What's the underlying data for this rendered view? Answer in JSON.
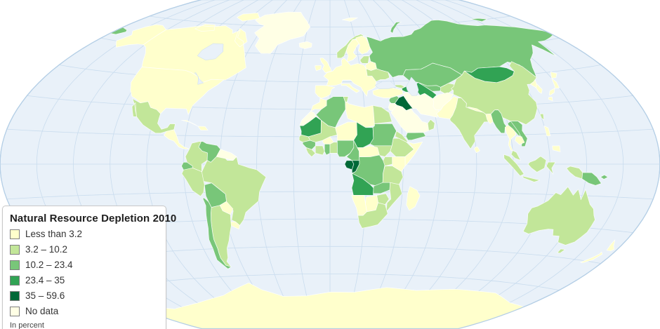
{
  "legend": {
    "title": "Natural Resource Depletion 2010",
    "note": "In percent",
    "items": [
      {
        "label": "Less than 3.2",
        "color": "#FFFFCC"
      },
      {
        "label": "3.2 – 10.2",
        "color": "#C2E699"
      },
      {
        "label": "10.2 – 23.4",
        "color": "#78C679"
      },
      {
        "label": "23.4 – 35",
        "color": "#31A354"
      },
      {
        "label": "35 – 59.6",
        "color": "#006837"
      },
      {
        "label": "No data",
        "color": "#FFFFE5"
      }
    ]
  },
  "map": {
    "projection": "winkel-tripel",
    "ocean_color": "#E9F1F9",
    "graticule_color": "#C9DCEE",
    "outline_color": "#B5CFE6",
    "border_color": "#FFFFFF",
    "background_color": "#FFFFFF",
    "regions": [
      {
        "name": "russia",
        "cat": 2
      },
      {
        "name": "chukotka",
        "cat": 2
      },
      {
        "name": "novaya-zemlya",
        "cat": 2
      },
      {
        "name": "new-siberian",
        "cat": 2
      },
      {
        "name": "svalbard",
        "cat": 5
      },
      {
        "name": "canada",
        "cat": 0
      },
      {
        "name": "usa",
        "cat": 0
      },
      {
        "name": "greenland",
        "cat": 5
      },
      {
        "name": "iceland",
        "cat": 5
      },
      {
        "name": "mexico",
        "cat": 1
      },
      {
        "name": "central-america",
        "cat": 0
      },
      {
        "name": "cuba",
        "cat": 0
      },
      {
        "name": "hispaniola",
        "cat": 0
      },
      {
        "name": "brazil",
        "cat": 1
      },
      {
        "name": "colombia",
        "cat": 1
      },
      {
        "name": "venezuela",
        "cat": 2
      },
      {
        "name": "guyanas",
        "cat": 5
      },
      {
        "name": "ecuador",
        "cat": 2
      },
      {
        "name": "peru",
        "cat": 1
      },
      {
        "name": "bolivia",
        "cat": 2
      },
      {
        "name": "paraguay",
        "cat": 0
      },
      {
        "name": "uruguay",
        "cat": 0
      },
      {
        "name": "argentina",
        "cat": 1
      },
      {
        "name": "chile",
        "cat": 2
      },
      {
        "name": "europe",
        "cat": 0
      },
      {
        "name": "iberia",
        "cat": 0
      },
      {
        "name": "uk",
        "cat": 0
      },
      {
        "name": "ireland",
        "cat": 0
      },
      {
        "name": "italy",
        "cat": 0
      },
      {
        "name": "norway",
        "cat": 1
      },
      {
        "name": "sweden",
        "cat": 0
      },
      {
        "name": "finland",
        "cat": 0
      },
      {
        "name": "baltics",
        "cat": 1
      },
      {
        "name": "belarus",
        "cat": 0
      },
      {
        "name": "ukraine",
        "cat": 1
      },
      {
        "name": "turkey",
        "cat": 0
      },
      {
        "name": "georgia",
        "cat": 1
      },
      {
        "name": "azerbaijan",
        "cat": 3
      },
      {
        "name": "kazakhstan",
        "cat": 2
      },
      {
        "name": "uzbekistan",
        "cat": 2
      },
      {
        "name": "turkmenistan",
        "cat": 3
      },
      {
        "name": "kyrgyzstan",
        "cat": 1
      },
      {
        "name": "iran",
        "cat": 5
      },
      {
        "name": "iraq",
        "cat": 4
      },
      {
        "name": "syria",
        "cat": 2
      },
      {
        "name": "jordan",
        "cat": 5
      },
      {
        "name": "saudi-arabia",
        "cat": 5
      },
      {
        "name": "yemen",
        "cat": 2
      },
      {
        "name": "oman",
        "cat": 1
      },
      {
        "name": "afghanistan",
        "cat": 5
      },
      {
        "name": "pakistan",
        "cat": 0
      },
      {
        "name": "china",
        "cat": 1
      },
      {
        "name": "mongolia",
        "cat": 3
      },
      {
        "name": "north-korea",
        "cat": 0
      },
      {
        "name": "south-korea",
        "cat": 0
      },
      {
        "name": "japan",
        "cat": 0
      },
      {
        "name": "india",
        "cat": 1
      },
      {
        "name": "nepal",
        "cat": 0
      },
      {
        "name": "bangladesh",
        "cat": 0
      },
      {
        "name": "sri-lanka",
        "cat": 0
      },
      {
        "name": "myanmar",
        "cat": 2
      },
      {
        "name": "thailand",
        "cat": 0
      },
      {
        "name": "laos",
        "cat": 2
      },
      {
        "name": "vietnam",
        "cat": 2
      },
      {
        "name": "cambodia",
        "cat": 0
      },
      {
        "name": "malaysia",
        "cat": 1
      },
      {
        "name": "indonesia",
        "cat": 1
      },
      {
        "name": "papua-new-guinea",
        "cat": 2
      },
      {
        "name": "philippines",
        "cat": 0
      },
      {
        "name": "taiwan",
        "cat": 1
      },
      {
        "name": "australia",
        "cat": 1
      },
      {
        "name": "tasmania",
        "cat": 1
      },
      {
        "name": "new-zealand",
        "cat": 0
      },
      {
        "name": "morocco",
        "cat": 0
      },
      {
        "name": "western-sahara",
        "cat": 5
      },
      {
        "name": "algeria",
        "cat": 2
      },
      {
        "name": "tunisia",
        "cat": 1
      },
      {
        "name": "libya",
        "cat": 0
      },
      {
        "name": "egypt",
        "cat": 1
      },
      {
        "name": "mauritania",
        "cat": 3
      },
      {
        "name": "mali",
        "cat": 1
      },
      {
        "name": "niger",
        "cat": 0
      },
      {
        "name": "chad",
        "cat": 3
      },
      {
        "name": "sudan",
        "cat": 2
      },
      {
        "name": "south-sudan",
        "cat": 1
      },
      {
        "name": "eritrea",
        "cat": 1
      },
      {
        "name": "ethiopia",
        "cat": 1
      },
      {
        "name": "somalia",
        "cat": 0
      },
      {
        "name": "senegal",
        "cat": 1
      },
      {
        "name": "guinea",
        "cat": 2
      },
      {
        "name": "sierra-leone-liberia",
        "cat": 1
      },
      {
        "name": "ivory-coast",
        "cat": 1
      },
      {
        "name": "ghana",
        "cat": 2
      },
      {
        "name": "burkina-faso",
        "cat": 0
      },
      {
        "name": "togo-benin",
        "cat": 1
      },
      {
        "name": "nigeria",
        "cat": 2
      },
      {
        "name": "cameroon",
        "cat": 2
      },
      {
        "name": "central-african-republic",
        "cat": 0
      },
      {
        "name": "dr-congo",
        "cat": 2
      },
      {
        "name": "gabon",
        "cat": 4
      },
      {
        "name": "congo",
        "cat": 4
      },
      {
        "name": "uganda",
        "cat": 1
      },
      {
        "name": "kenya",
        "cat": 0
      },
      {
        "name": "tanzania",
        "cat": 1
      },
      {
        "name": "angola",
        "cat": 3
      },
      {
        "name": "zambia",
        "cat": 2
      },
      {
        "name": "mozambique",
        "cat": 1
      },
      {
        "name": "zimbabwe",
        "cat": 1
      },
      {
        "name": "botswana",
        "cat": 0
      },
      {
        "name": "namibia",
        "cat": 0
      },
      {
        "name": "south-africa",
        "cat": 1
      },
      {
        "name": "madagascar",
        "cat": 0
      },
      {
        "name": "antarctica",
        "cat": 0
      }
    ],
    "water": [
      {
        "name": "caspian-sea"
      },
      {
        "name": "black-sea"
      },
      {
        "name": "hudson-bay"
      },
      {
        "name": "great-lakes"
      }
    ]
  }
}
